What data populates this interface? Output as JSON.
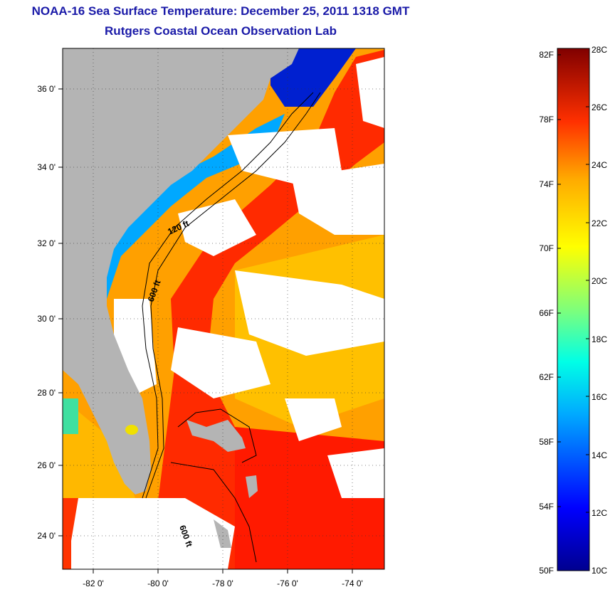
{
  "title": {
    "line1": "NOAA-16 Sea Surface Temperature:  December 25, 2011 1318 GMT",
    "line2": "Rutgers Coastal Ocean Observation Lab"
  },
  "map": {
    "lat_ticks": [
      "36 0'",
      "34 0'",
      "32 0'",
      "30 0'",
      "28 0'",
      "26 0'",
      "24 0'"
    ],
    "lon_ticks": [
      "-82 0'",
      "-80 0'",
      "-78 0'",
      "-76 0'",
      "-74 0'"
    ],
    "lat_range": [
      23,
      37
    ],
    "lon_range": [
      -83,
      -73
    ],
    "isobath_labels": [
      "120 ft",
      "600 ft",
      "600 ft"
    ],
    "colors": {
      "land": "#b4b4b4",
      "cloud": "#ffffff"
    }
  },
  "colorbar": {
    "fahrenheit_labels": [
      "82F",
      "78F",
      "74F",
      "70F",
      "66F",
      "62F",
      "58F",
      "54F",
      "50F"
    ],
    "celsius_labels": [
      "28C",
      "26C",
      "24C",
      "22C",
      "20C",
      "18C",
      "16C",
      "14C",
      "12C",
      "10C"
    ],
    "range_c": [
      10,
      28
    ],
    "colormap": "jet"
  }
}
